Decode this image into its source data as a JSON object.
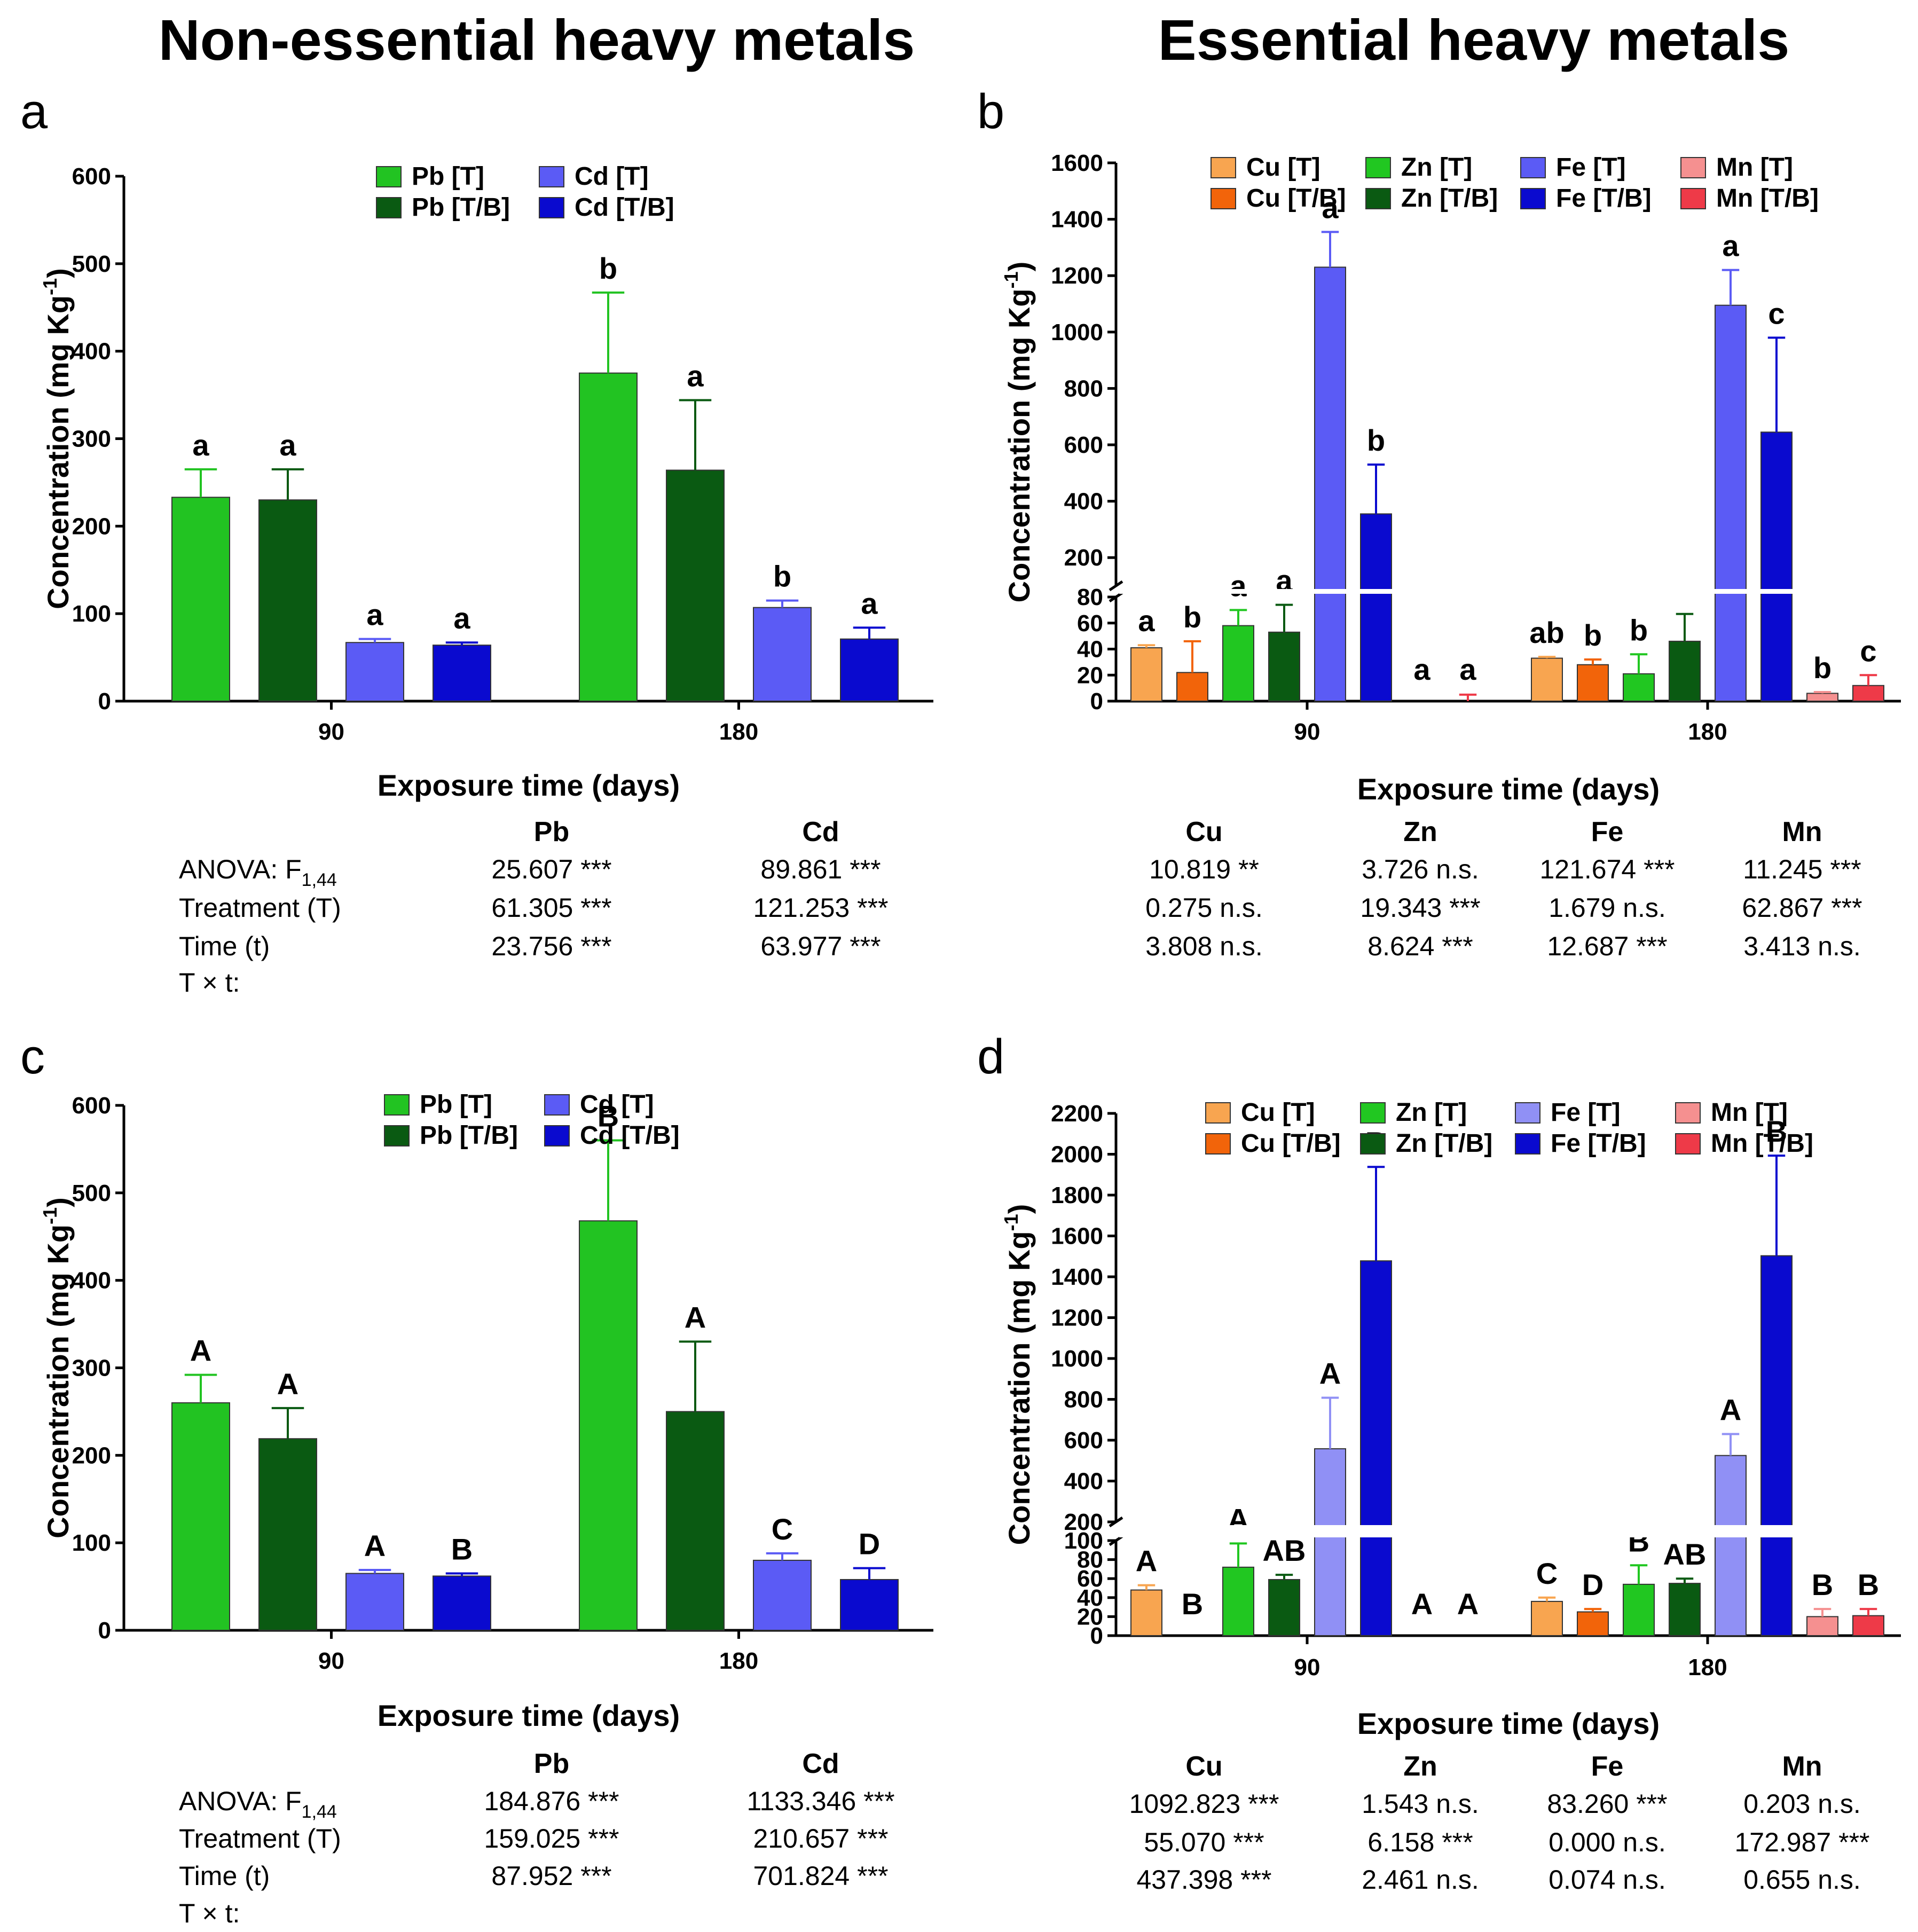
{
  "columns": {
    "left_title": "Non-essential heavy metals",
    "right_title": "Essential heavy metals"
  },
  "colors": {
    "Pb_T": "#22c322",
    "Pb_TB": "#0a5a12",
    "Cd_T": "#5b5bf5",
    "Cd_TB": "#0a0acf",
    "Cu_T": "#f8a550",
    "Cu_TB": "#f2640a",
    "Zn_T": "#21c721",
    "Zn_TB": "#0a5a12",
    "Fe_T": "#5b5bf5",
    "Fe_T_d": "#9090f5",
    "Fe_TB": "#0a0acf",
    "Mn_T": "#f59090",
    "Mn_TB": "#ee3a48"
  },
  "chart_data": [
    {
      "panel": "a",
      "type": "bar",
      "ylabel": "Concentration (mg Kg",
      "ylabel_sup": "-1",
      "ylabel_close": ")",
      "xlabel": "Exposure time (days)",
      "categories": [
        "90",
        "180"
      ],
      "ylim": [
        0,
        600
      ],
      "yticks": [
        0,
        100,
        200,
        300,
        400,
        500,
        600
      ],
      "series": [
        {
          "name": "Pb [T]",
          "color_key": "Pb_T",
          "values": [
            233,
            375
          ],
          "errors": [
            32,
            92
          ],
          "letters": [
            "a",
            "b"
          ]
        },
        {
          "name": "Pb [T/B]",
          "color_key": "Pb_TB",
          "values": [
            230,
            264
          ],
          "errors": [
            35,
            80
          ],
          "letters": [
            "a",
            "a"
          ]
        },
        {
          "name": "Cd [T]",
          "color_key": "Cd_T",
          "values": [
            67,
            107
          ],
          "errors": [
            4,
            8
          ],
          "letters": [
            "a",
            "b"
          ]
        },
        {
          "name": "Cd [T/B]",
          "color_key": "Cd_TB",
          "values": [
            64,
            71
          ],
          "errors": [
            3,
            13
          ],
          "letters": [
            "a",
            "a"
          ]
        }
      ],
      "stats": {
        "headers": [
          "Pb",
          "Cd"
        ],
        "rows": [
          {
            "label": "ANOVA: F",
            "label_sub": "1,44",
            "values": [
              "25.607 ***",
              "89.861 ***"
            ]
          },
          {
            "label": "Treatment (T)",
            "values": [
              "61.305 ***",
              "121.253 ***"
            ]
          },
          {
            "label": "Time (t)",
            "values": [
              "23.756 ***",
              "63.977 ***"
            ]
          },
          {
            "label": "T × t:",
            "values": []
          }
        ]
      }
    },
    {
      "panel": "b",
      "type": "bar",
      "ylabel": "Concentration (mg Kg",
      "ylabel_sup": "-1",
      "ylabel_close": ")",
      "xlabel": "Exposure time (days)",
      "categories": [
        "90",
        "180"
      ],
      "ylim": [
        0,
        1600
      ],
      "axis_break": [
        80,
        100
      ],
      "yticks_lower": [
        0,
        20,
        40,
        60,
        80
      ],
      "yticks_upper": [
        200,
        400,
        600,
        800,
        1000,
        1200,
        1400,
        1600
      ],
      "series": [
        {
          "name": "Cu [T]",
          "color_key": "Cu_T",
          "values": [
            41,
            33
          ],
          "errors": [
            2,
            1
          ],
          "letters": [
            "a",
            "ab"
          ]
        },
        {
          "name": "Cu [T/B]",
          "color_key": "Cu_TB",
          "values": [
            22,
            28
          ],
          "errors": [
            24,
            4
          ],
          "letters": [
            "b",
            "b"
          ]
        },
        {
          "name": "Zn [T]",
          "color_key": "Zn_T",
          "values": [
            58,
            21
          ],
          "errors": [
            12,
            15
          ],
          "letters": [
            "a",
            "b"
          ]
        },
        {
          "name": "Zn [T/B]",
          "color_key": "Zn_TB",
          "values": [
            53,
            46
          ],
          "errors": [
            21,
            21
          ],
          "letters": [
            "a",
            ""
          ]
        },
        {
          "name": "Fe [T]",
          "color_key": "Fe_T",
          "values": [
            1230,
            1095
          ],
          "errors": [
            125,
            125
          ],
          "letters": [
            "a",
            "a"
          ]
        },
        {
          "name": "Fe [T/B]",
          "color_key": "Fe_TB",
          "values": [
            355,
            645
          ],
          "errors": [
            175,
            335
          ],
          "letters": [
            "b",
            "c"
          ]
        },
        {
          "name": "Mn [T]",
          "color_key": "Mn_T",
          "values": [
            0,
            6
          ],
          "errors": [
            0,
            1
          ],
          "letters": [
            "a",
            "b"
          ]
        },
        {
          "name": "Mn [T/B]",
          "color_key": "Mn_TB",
          "values": [
            0,
            12
          ],
          "errors": [
            5,
            8
          ],
          "letters": [
            "a",
            "c"
          ]
        }
      ],
      "stats": {
        "headers": [
          "Cu",
          "Zn",
          "Fe",
          "Mn"
        ],
        "rows": [
          {
            "values": [
              "10.819 **",
              "3.726 n.s.",
              "121.674 ***",
              "11.245 ***"
            ]
          },
          {
            "values": [
              "0.275 n.s.",
              "19.343 ***",
              "1.679 n.s.",
              "62.867 ***"
            ]
          },
          {
            "values": [
              "3.808 n.s.",
              "8.624 ***",
              "12.687 ***",
              "3.413 n.s."
            ]
          }
        ]
      }
    },
    {
      "panel": "c",
      "type": "bar",
      "ylabel": "Concentration (mg Kg",
      "ylabel_sup": "-1",
      "ylabel_close": ")",
      "xlabel": "Exposure time (days)",
      "categories": [
        "90",
        "180"
      ],
      "ylim": [
        0,
        600
      ],
      "yticks": [
        0,
        100,
        200,
        300,
        400,
        500,
        600
      ],
      "series": [
        {
          "name": "Pb [T]",
          "color_key": "Pb_T",
          "values": [
            260,
            468
          ],
          "errors": [
            32,
            92
          ],
          "letters": [
            "A",
            "B"
          ]
        },
        {
          "name": "Pb [T/B]",
          "color_key": "Pb_TB",
          "values": [
            219,
            250
          ],
          "errors": [
            35,
            80
          ],
          "letters": [
            "A",
            "A"
          ]
        },
        {
          "name": "Cd [T]",
          "color_key": "Cd_T",
          "values": [
            65,
            80
          ],
          "errors": [
            4,
            8
          ],
          "letters": [
            "A",
            "C"
          ]
        },
        {
          "name": "Cd [T/B]",
          "color_key": "Cd_TB",
          "values": [
            62,
            58
          ],
          "errors": [
            3,
            13
          ],
          "letters": [
            "B",
            "D"
          ]
        }
      ],
      "stats": {
        "headers": [
          "Pb",
          "Cd"
        ],
        "rows": [
          {
            "label": "ANOVA: F",
            "label_sub": "1,44",
            "values": [
              "184.876 ***",
              "1133.346 ***"
            ]
          },
          {
            "label": "Treatment (T)",
            "values": [
              "159.025 ***",
              "210.657 ***"
            ]
          },
          {
            "label": "Time (t)",
            "values": [
              "87.952 ***",
              "701.824 ***"
            ]
          },
          {
            "label": "T × t:",
            "values": []
          }
        ]
      }
    },
    {
      "panel": "d",
      "type": "bar",
      "ylabel": "Concentration (mg Kg",
      "ylabel_sup": "-1",
      "ylabel_close": ")",
      "xlabel": "Exposure time (days)",
      "categories": [
        "90",
        "180"
      ],
      "ylim": [
        0,
        2200
      ],
      "axis_break": [
        100,
        200
      ],
      "yticks_lower": [
        0,
        20,
        40,
        60,
        80,
        100
      ],
      "yticks_upper": [
        200,
        400,
        600,
        800,
        1000,
        1200,
        1400,
        1600,
        1800,
        2000,
        2200
      ],
      "series": [
        {
          "name": "Cu [T]",
          "color_key": "Cu_T",
          "values": [
            48,
            36
          ],
          "errors": [
            5,
            4
          ],
          "letters": [
            "A",
            "C"
          ]
        },
        {
          "name": "Cu [T/B]",
          "color_key": "Cu_TB",
          "values": [
            0,
            25
          ],
          "errors": [
            0,
            3
          ],
          "letters": [
            "B",
            "D"
          ]
        },
        {
          "name": "Zn [T]",
          "color_key": "Zn_T",
          "values": [
            72,
            54
          ],
          "errors": [
            25,
            20
          ],
          "letters": [
            "A",
            "B"
          ]
        },
        {
          "name": "Zn [T/B]",
          "color_key": "Zn_TB",
          "values": [
            59,
            55
          ],
          "errors": [
            5,
            5
          ],
          "letters": [
            "AB",
            "AB"
          ]
        },
        {
          "name": "Fe [T]",
          "color_key": "Fe_T_d",
          "values": [
            558,
            525
          ],
          "errors": [
            250,
            105
          ],
          "letters": [
            "A",
            "A"
          ]
        },
        {
          "name": "Fe [T/B]",
          "color_key": "Fe_TB",
          "values": [
            1478,
            1503
          ],
          "errors": [
            460,
            490
          ],
          "letters": [
            "B",
            "B"
          ]
        },
        {
          "name": "Mn [T]",
          "color_key": "Mn_T",
          "values": [
            0,
            20
          ],
          "errors": [
            0,
            8
          ],
          "letters": [
            "A",
            "B"
          ]
        },
        {
          "name": "Mn [T/B]",
          "color_key": "Mn_TB",
          "values": [
            0,
            21
          ],
          "errors": [
            0,
            7
          ],
          "letters": [
            "A",
            "B"
          ]
        }
      ],
      "stats": {
        "headers": [
          "Cu",
          "Zn",
          "Fe",
          "Mn"
        ],
        "rows": [
          {
            "values": [
              "1092.823 ***",
              "1.543 n.s.",
              "83.260 ***",
              "0.203 n.s."
            ]
          },
          {
            "values": [
              "55.070 ***",
              "6.158 ***",
              "0.000 n.s.",
              "172.987 ***"
            ]
          },
          {
            "values": [
              "437.398 ***",
              "2.461 n.s.",
              "0.074 n.s.",
              "0.655 n.s."
            ]
          }
        ]
      }
    }
  ]
}
